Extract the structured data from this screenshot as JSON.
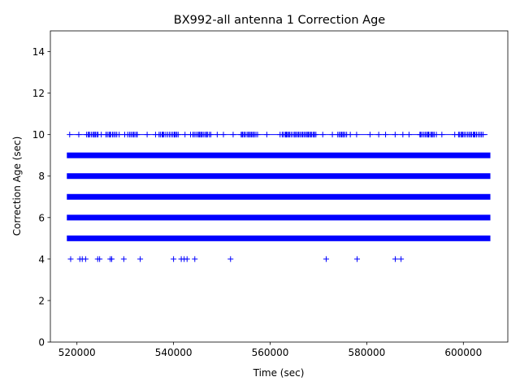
{
  "chart_data": {
    "type": "scatter",
    "title": "BX992-all antenna 1 Correction Age",
    "xlabel": "Time (sec)",
    "ylabel": "Correction Age (sec)",
    "xlim": [
      514500,
      609200
    ],
    "ylim": [
      0,
      15
    ],
    "xticks": [
      520000,
      540000,
      560000,
      580000,
      600000
    ],
    "yticks": [
      0,
      2,
      4,
      6,
      8,
      10,
      12,
      14
    ],
    "marker": "+",
    "color": "#0000ff",
    "grid": false,
    "legend": "none",
    "series": [
      {
        "y": 5,
        "x_range": [
          518500,
          605000
        ],
        "density": "continuous"
      },
      {
        "y": 6,
        "x_range": [
          518500,
          605000
        ],
        "density": "continuous"
      },
      {
        "y": 7,
        "x_range": [
          518500,
          605000
        ],
        "density": "continuous"
      },
      {
        "y": 8,
        "x_range": [
          518500,
          605000
        ],
        "density": "continuous"
      },
      {
        "y": 9,
        "x_range": [
          518500,
          605000
        ],
        "density": "continuous"
      },
      {
        "y": 10,
        "x_range": [
          518500,
          605000
        ],
        "density": "sparse",
        "clusters": [
          [
            522000,
            524500
          ],
          [
            526000,
            528500
          ],
          [
            530500,
            532500
          ],
          [
            537000,
            541000
          ],
          [
            544000,
            548000
          ],
          [
            554000,
            557500
          ],
          [
            562500,
            569500
          ],
          [
            574000,
            576000
          ],
          [
            591000,
            594000
          ],
          [
            599000,
            604000
          ]
        ]
      },
      {
        "y": 4,
        "x": [
          518700,
          520600,
          521100,
          521800,
          524300,
          524700,
          526900,
          527200,
          529700,
          533100,
          540000,
          541600,
          542200,
          542800,
          544400,
          551800,
          571600,
          578000,
          585900,
          587100
        ]
      }
    ]
  }
}
